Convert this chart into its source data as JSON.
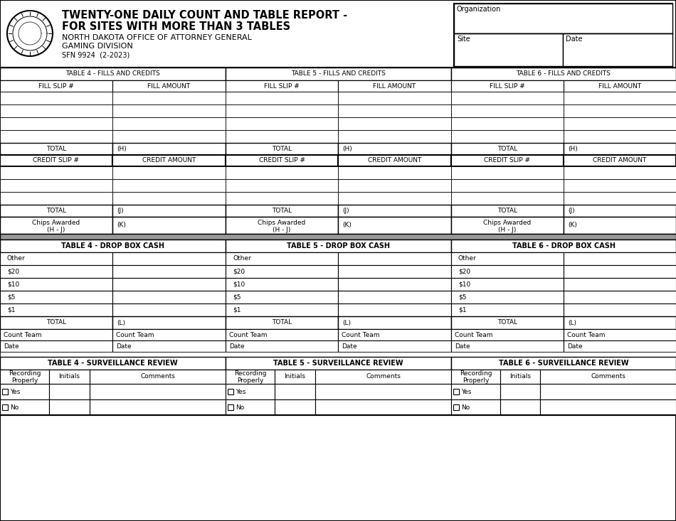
{
  "title_line1": "TWENTY-ONE DAILY COUNT AND TABLE REPORT -",
  "title_line2": "FOR SITES WITH MORE THAN 3 TABLES",
  "subtitle1": "NORTH DAKOTA OFFICE OF ATTORNEY GENERAL",
  "subtitle2": "GAMING DIVISION",
  "form_num": "SFN 9924  (2-2023)",
  "org_label": "Organization",
  "site_label": "Site",
  "date_label": "Date",
  "table4_fills": "TABLE 4 - FILLS AND CREDITS",
  "table5_fills": "TABLE 5 - FILLS AND CREDITS",
  "table6_fills": "TABLE 6 - FILLS AND CREDITS",
  "fill_slip": "FILL SLIP #",
  "fill_amount": "FILL AMOUNT",
  "credit_slip": "CREDIT SLIP #",
  "credit_amount": "CREDIT AMOUNT",
  "total_label": "TOTAL",
  "h_label": "(H)",
  "j_label": "(J)",
  "k_label": "(K)",
  "l_label": "(L)",
  "chips_line1": "Chips Awarded",
  "chips_line2": "(H - J)",
  "table4_drop": "TABLE 4 - DROP BOX CASH",
  "table5_drop": "TABLE 5 - DROP BOX CASH",
  "table6_drop": "TABLE 6 - DROP BOX CASH",
  "other_label": "Other",
  "twenty_label": "$20",
  "ten_label": "$10",
  "five_label": "$5",
  "one_label": "$1",
  "count_team": "Count Team",
  "date_field": "Date",
  "table4_surv": "TABLE 4 - SURVEILLANCE REVIEW",
  "table5_surv": "TABLE 5 - SURVEILLANCE REVIEW",
  "table6_surv": "TABLE 6 - SURVEILLANCE REVIEW",
  "recording_line1": "Recording",
  "recording_line2": "Properly",
  "initials": "Initials",
  "comments": "Comments",
  "yes_label": "Yes",
  "no_label": "No",
  "white": "#ffffff",
  "black": "#000000",
  "gray_band": "#999999",
  "light_gray": "#dddddd"
}
